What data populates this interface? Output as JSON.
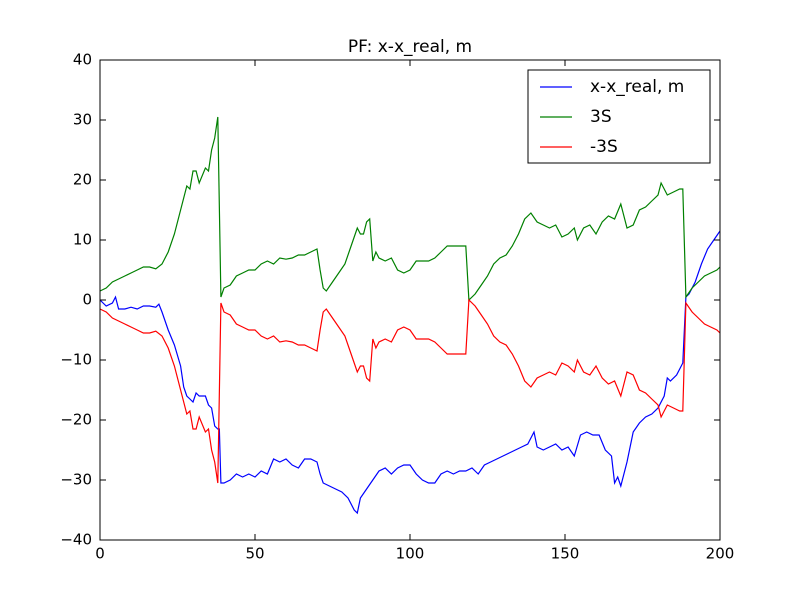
{
  "chart_data": {
    "type": "line",
    "title": "PF: x-x_real, m",
    "xlim": [
      0,
      200
    ],
    "ylim": [
      -40,
      40
    ],
    "xticks": [
      0,
      50,
      100,
      150,
      200
    ],
    "yticks": [
      {
        "value": -40,
        "label": "−40"
      },
      {
        "value": -30,
        "label": "−30"
      },
      {
        "value": -20,
        "label": "−20"
      },
      {
        "value": -10,
        "label": "−10"
      },
      0,
      10,
      20,
      30,
      40
    ],
    "grid": false,
    "legend": "upper right",
    "series": [
      {
        "name": "x-x_real, m",
        "color": "#0000ff",
        "x": [
          0,
          2,
          4,
          5,
          6,
          8,
          10,
          12,
          14,
          16,
          18,
          19,
          20,
          22,
          24,
          26,
          27,
          28,
          29,
          30,
          31,
          32,
          34,
          35,
          36,
          37,
          38,
          38.5,
          39,
          40,
          42,
          44,
          46,
          48,
          50,
          52,
          54,
          56,
          58,
          60,
          62,
          64,
          66,
          68,
          70,
          71,
          72,
          74,
          76,
          78,
          80,
          82,
          83,
          84,
          86,
          88,
          90,
          92,
          94,
          96,
          98,
          100,
          102,
          104,
          106,
          108,
          110,
          112,
          114,
          116,
          118,
          120,
          122,
          124,
          126,
          128,
          130,
          132,
          134,
          136,
          138,
          140,
          141,
          143,
          145,
          147,
          149,
          151,
          153,
          155,
          157,
          159,
          161,
          163,
          165,
          166,
          167,
          168,
          170,
          172,
          174,
          176,
          178,
          180,
          182,
          183,
          184,
          186,
          188,
          189,
          190,
          192,
          194,
          196,
          198,
          200
        ],
        "values": [
          0,
          -1,
          -0.5,
          0.5,
          -1.5,
          -1.5,
          -1.2,
          -1.5,
          -1,
          -1,
          -1.2,
          -0.7,
          -2,
          -5,
          -7.5,
          -11,
          -14.5,
          -16,
          -16.5,
          -17,
          -15.5,
          -16,
          -16,
          -17.5,
          -18,
          -21,
          -21.5,
          -21.5,
          -30.5,
          -30.5,
          -30,
          -29,
          -29.5,
          -29,
          -29.5,
          -28.5,
          -29,
          -26.5,
          -27,
          -26.5,
          -27.5,
          -28,
          -26.5,
          -26.5,
          -27,
          -29,
          -30.5,
          -31,
          -31.5,
          -32,
          -33,
          -35,
          -35.5,
          -33,
          -31.5,
          -30,
          -28.5,
          -28,
          -29,
          -28,
          -27.5,
          -27.5,
          -29,
          -30,
          -30.5,
          -30.5,
          -29,
          -28.5,
          -29,
          -28.5,
          -28.5,
          -28,
          -29,
          -27.5,
          -27,
          -26.5,
          -26,
          -25.5,
          -25,
          -24.5,
          -24,
          -22,
          -24.5,
          -25,
          -24.5,
          -24,
          -25,
          -24.5,
          -26,
          -22.5,
          -22,
          -22.5,
          -22.5,
          -25,
          -26,
          -30.5,
          -29.5,
          -31,
          -27,
          -22,
          -20.5,
          -19.5,
          -19,
          -18,
          -16,
          -13,
          -13.5,
          -12.5,
          -10.5,
          0.5,
          1,
          3,
          6,
          8.5,
          10,
          11.5
        ]
      },
      {
        "name": "3S",
        "color": "#008000",
        "x": [
          0,
          2,
          4,
          6,
          8,
          10,
          12,
          14,
          16,
          18,
          20,
          22,
          24,
          26,
          28,
          29,
          30,
          31,
          32,
          34,
          35,
          36,
          37,
          38,
          39,
          40,
          42,
          44,
          46,
          48,
          50,
          52,
          54,
          56,
          58,
          60,
          62,
          64,
          66,
          68,
          70,
          71,
          72,
          73,
          75,
          77,
          79,
          81,
          83,
          84,
          85,
          86,
          87,
          88,
          89,
          90,
          92,
          94,
          96,
          98,
          100,
          102,
          104,
          106,
          108,
          110,
          112,
          114,
          116,
          118,
          119,
          121,
          123,
          125,
          127,
          129,
          131,
          133,
          135,
          137,
          139,
          141,
          143,
          145,
          147,
          149,
          151,
          153,
          154,
          156,
          158,
          160,
          162,
          164,
          166,
          168,
          170,
          172,
          174,
          176,
          178,
          180,
          181,
          183,
          185,
          187,
          188,
          189,
          191,
          193,
          195,
          197,
          199,
          200
        ],
        "values": [
          1.5,
          2,
          3,
          3.5,
          4,
          4.5,
          5,
          5.5,
          5.5,
          5.2,
          6,
          8,
          11,
          15,
          19,
          18.5,
          21.5,
          21.5,
          19.5,
          22,
          21.5,
          25,
          27,
          30.5,
          0.5,
          2,
          2.5,
          4,
          4.5,
          5,
          5,
          6,
          6.5,
          6,
          7,
          6.8,
          7,
          7.5,
          7.5,
          8,
          8.5,
          5,
          2,
          1.5,
          3,
          4.5,
          6,
          9,
          12,
          11,
          11,
          13,
          13.5,
          6.5,
          8,
          7,
          6.5,
          7,
          5,
          4.5,
          5,
          6.5,
          6.5,
          6.5,
          7,
          8,
          9,
          9,
          9,
          9,
          0,
          1,
          2.5,
          4,
          6,
          7,
          7.5,
          9,
          11,
          13.5,
          14.5,
          13,
          12.5,
          12,
          12.5,
          10.5,
          11,
          12,
          10,
          12,
          12.5,
          11,
          13,
          14,
          13.5,
          16,
          12,
          12.5,
          15,
          15.5,
          16.5,
          17.5,
          19.5,
          17.5,
          18,
          18.5,
          18.5,
          0.5,
          2,
          3,
          4,
          4.5,
          5,
          5.5
        ]
      },
      {
        "name": "-3S",
        "color": "#ff0000",
        "x": [
          0,
          2,
          4,
          6,
          8,
          10,
          12,
          14,
          16,
          18,
          20,
          22,
          24,
          26,
          28,
          29,
          30,
          31,
          32,
          34,
          35,
          36,
          37,
          38,
          39,
          40,
          42,
          44,
          46,
          48,
          50,
          52,
          54,
          56,
          58,
          60,
          62,
          64,
          66,
          68,
          70,
          71,
          72,
          73,
          75,
          77,
          79,
          81,
          83,
          84,
          85,
          86,
          87,
          88,
          89,
          90,
          92,
          94,
          96,
          98,
          100,
          102,
          104,
          106,
          108,
          110,
          112,
          114,
          116,
          118,
          119,
          121,
          123,
          125,
          127,
          129,
          131,
          133,
          135,
          137,
          139,
          141,
          143,
          145,
          147,
          149,
          151,
          153,
          154,
          156,
          158,
          160,
          162,
          164,
          166,
          168,
          170,
          172,
          174,
          176,
          178,
          180,
          181,
          183,
          185,
          187,
          188,
          189,
          191,
          193,
          195,
          197,
          199,
          200
        ],
        "values": [
          -1.5,
          -2,
          -3,
          -3.5,
          -4,
          -4.5,
          -5,
          -5.5,
          -5.5,
          -5.2,
          -6,
          -8,
          -11,
          -15,
          -19,
          -18.5,
          -21.5,
          -21.5,
          -19.5,
          -22,
          -21.5,
          -25,
          -27,
          -30.5,
          -0.5,
          -2,
          -2.5,
          -4,
          -4.5,
          -5,
          -5,
          -6,
          -6.5,
          -6,
          -7,
          -6.8,
          -7,
          -7.5,
          -7.5,
          -8,
          -8.5,
          -5,
          -2,
          -1.5,
          -3,
          -4.5,
          -6,
          -9,
          -12,
          -11,
          -11,
          -13,
          -13.5,
          -6.5,
          -8,
          -7,
          -6.5,
          -7,
          -5,
          -4.5,
          -5,
          -6.5,
          -6.5,
          -6.5,
          -7,
          -8,
          -9,
          -9,
          -9,
          -9,
          0,
          -1,
          -2.5,
          -4,
          -6,
          -7,
          -7.5,
          -9,
          -11,
          -13.5,
          -14.5,
          -13,
          -12.5,
          -12,
          -12.5,
          -10.5,
          -11,
          -12,
          -10,
          -12,
          -12.5,
          -11,
          -13,
          -14,
          -13.5,
          -16,
          -12,
          -12.5,
          -15,
          -15.5,
          -16.5,
          -17.5,
          -19.5,
          -17.5,
          -18,
          -18.5,
          -18.5,
          -0.5,
          -2,
          -3,
          -4,
          -4.5,
          -5,
          -5.5
        ]
      }
    ]
  }
}
